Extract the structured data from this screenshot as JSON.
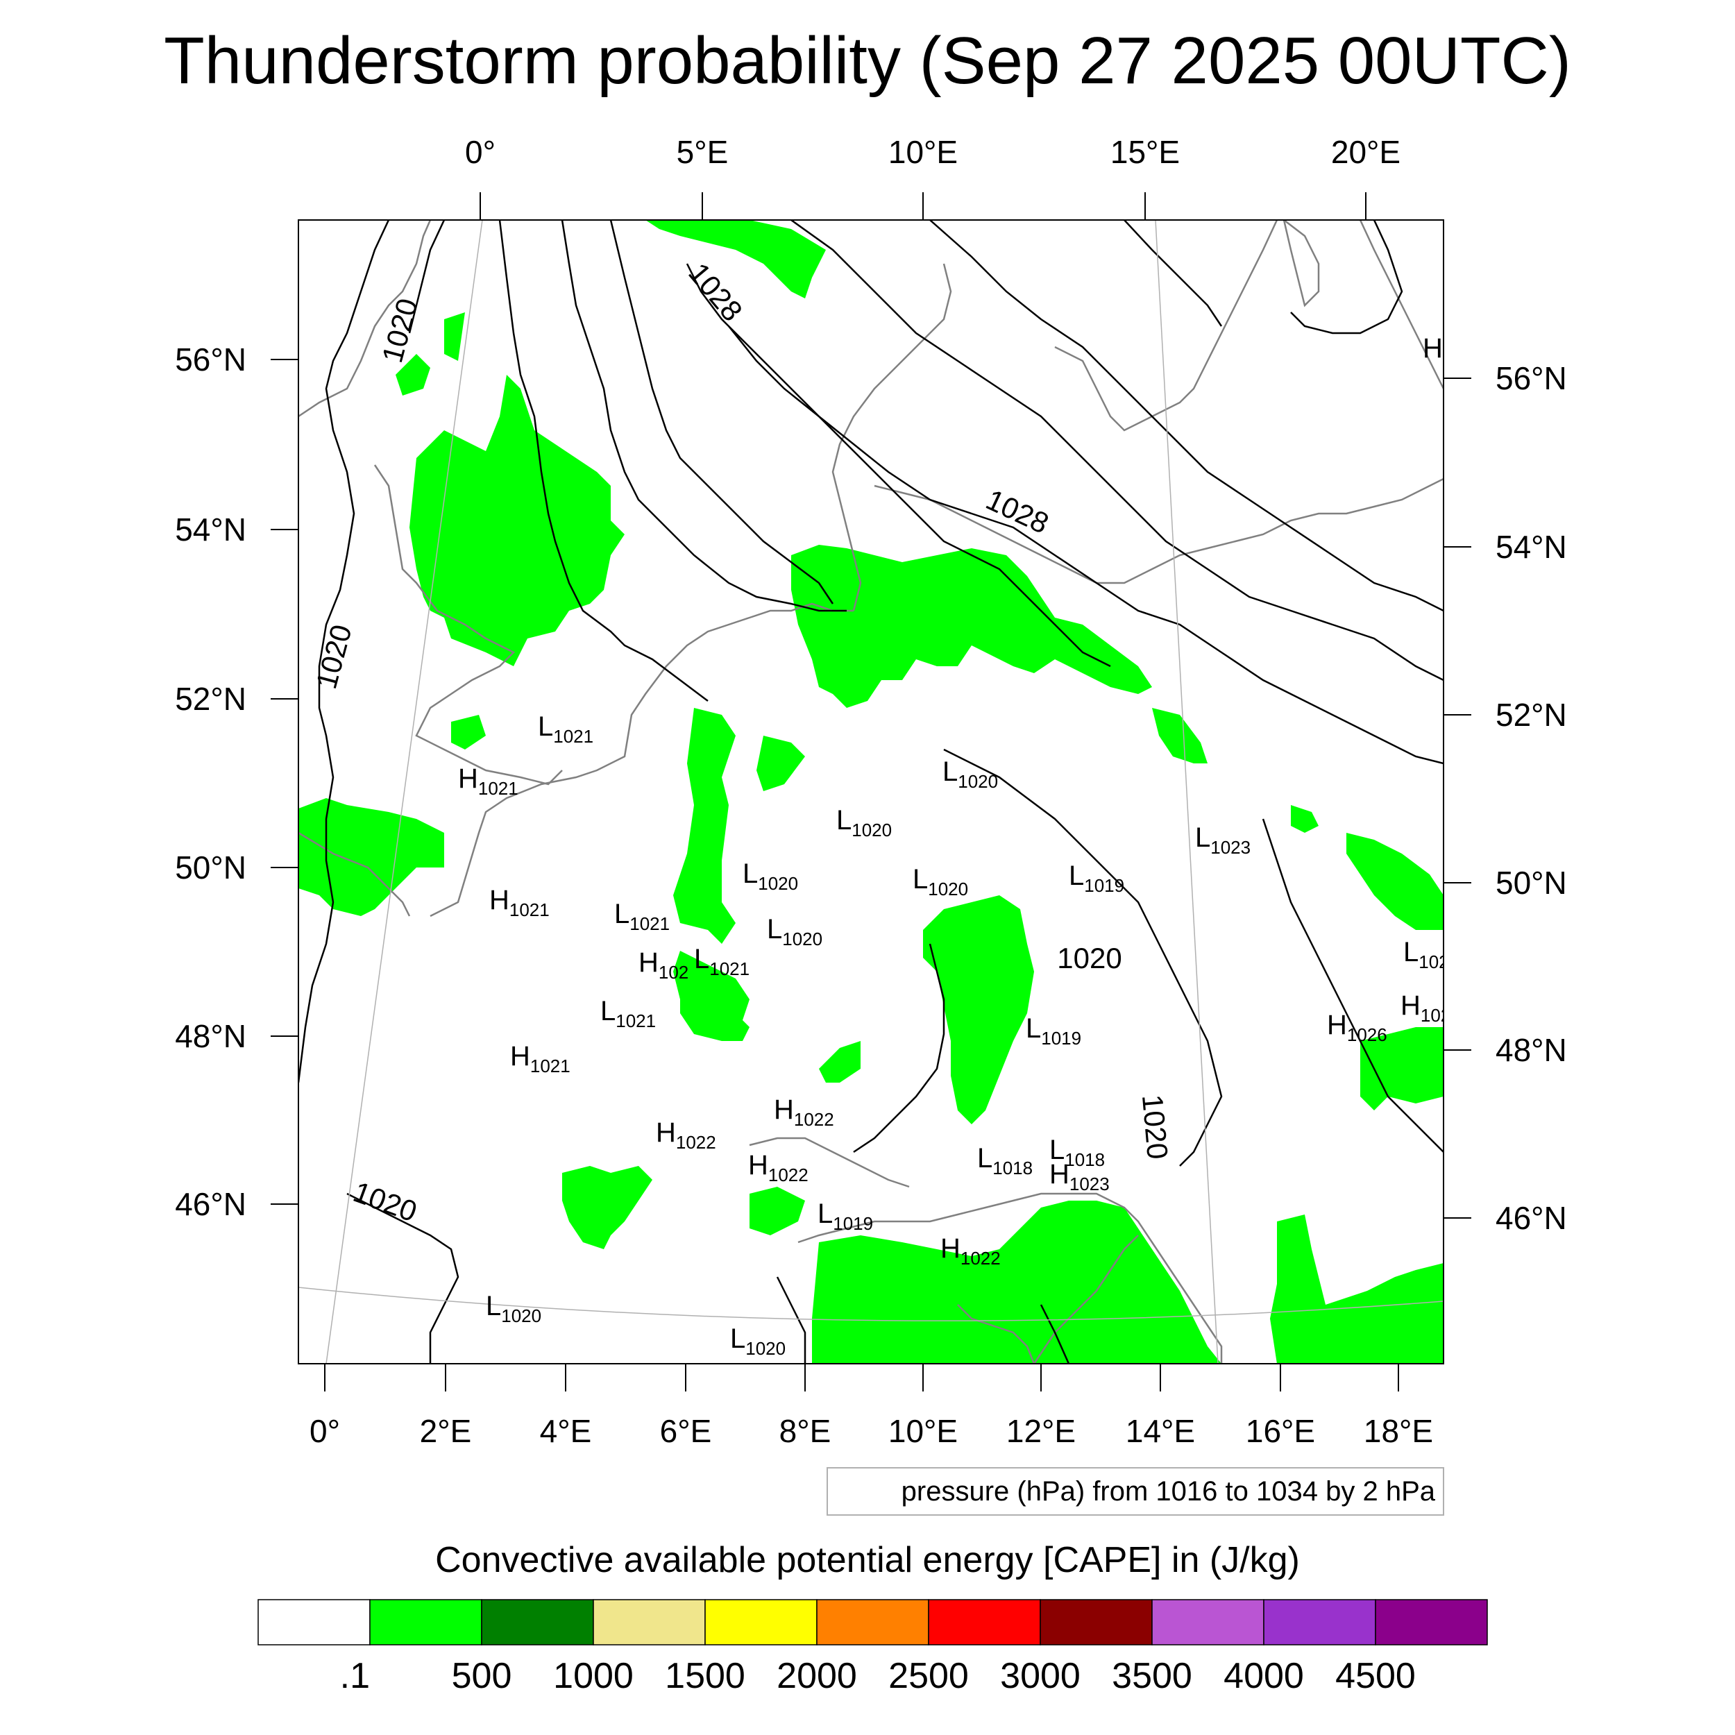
{
  "title": "Thunderstorm probability (Sep 27 2025 00UTC)",
  "top_lon_labels": [
    "0°",
    "5°E",
    "10°E",
    "15°E",
    "20°E"
  ],
  "bottom_lon_labels": [
    "0°",
    "2°E",
    "4°E",
    "6°E",
    "8°E",
    "10°E",
    "12°E",
    "14°E",
    "16°E",
    "18°E"
  ],
  "left_lat_labels": [
    "56°N",
    "54°N",
    "52°N",
    "50°N",
    "48°N",
    "46°N"
  ],
  "right_lat_labels": [
    "56°N",
    "54°N",
    "52°N",
    "50°N",
    "48°N",
    "46°N"
  ],
  "contour_labels": [
    "1020",
    "1020",
    "1028",
    "1028",
    "1020",
    "1020",
    "1020"
  ],
  "pressure_centers": [
    {
      "type": "L",
      "value": "1021"
    },
    {
      "type": "H",
      "value": "1021"
    },
    {
      "type": "L",
      "value": "1020"
    },
    {
      "type": "L",
      "value": "1020"
    },
    {
      "type": "L",
      "value": "1023"
    },
    {
      "type": "H",
      "value": "1021"
    },
    {
      "type": "L",
      "value": "1021"
    },
    {
      "type": "L",
      "value": "1020"
    },
    {
      "type": "L",
      "value": "1020"
    },
    {
      "type": "L",
      "value": "1020"
    },
    {
      "type": "L",
      "value": "1019"
    },
    {
      "type": "H",
      "value": "102"
    },
    {
      "type": "L",
      "value": "1021"
    },
    {
      "type": "L",
      "value": "1021"
    },
    {
      "type": "L",
      "value": "1019"
    },
    {
      "type": "H",
      "value": "1021"
    },
    {
      "type": "H",
      "value": "1026"
    },
    {
      "type": "H",
      "value": "102"
    },
    {
      "type": "L",
      "value": "102"
    },
    {
      "type": "H",
      "value": "1022"
    },
    {
      "type": "H",
      "value": "1022"
    },
    {
      "type": "H",
      "value": "1022"
    },
    {
      "type": "L",
      "value": "1018"
    },
    {
      "type": "L",
      "value": "1018"
    },
    {
      "type": "H",
      "value": "1023"
    },
    {
      "type": "L",
      "value": "1019"
    },
    {
      "type": "H",
      "value": "1022"
    },
    {
      "type": "L",
      "value": "1020"
    },
    {
      "type": "L",
      "value": "1020"
    },
    {
      "type": "H",
      "value": ""
    }
  ],
  "footer": "pressure (hPa) from 1016 to 1034 by 2 hPa",
  "colorbar": {
    "title": "Convective available potential energy [CAPE] in (J/kg)",
    "colors": [
      "#ffffff",
      "#00ff00",
      "#008000",
      "#f0e68c",
      "#ffff00",
      "#ff8000",
      "#ff0000",
      "#8b0000",
      "#ba55d3",
      "#9932cc",
      "#8b008b"
    ],
    "ticks": [
      ".1",
      "500",
      "1000",
      "1500",
      "2000",
      "2500",
      "3000",
      "3500",
      "4000",
      "4500"
    ]
  },
  "colors": {
    "cape_fill": "#00ff00",
    "coastline": "#808080",
    "isobar": "#000000"
  }
}
